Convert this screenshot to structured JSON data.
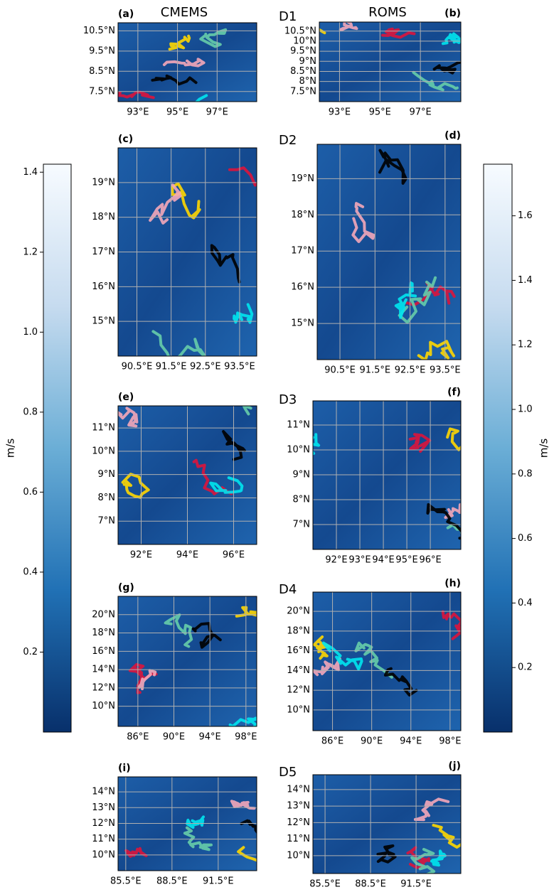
{
  "headers": {
    "left": "CMEMS",
    "right": "ROMS"
  },
  "row_labels": [
    "D1",
    "D2",
    "D3",
    "D4",
    "D5"
  ],
  "chart_data": [
    {
      "type": "map",
      "title": "(a)",
      "grid": true,
      "xlim": [
        92,
        99
      ],
      "ylim": [
        7,
        10.9
      ],
      "xticks": [
        {
          "value": 93,
          "label": "93°E"
        },
        {
          "value": 95,
          "label": "95°E"
        },
        {
          "value": 97,
          "label": "97°E"
        }
      ],
      "yticks": [
        {
          "value": 7.5,
          "label": "7.5°N"
        },
        {
          "value": 8.5,
          "label": "8.5°N"
        },
        {
          "value": 9.5,
          "label": "9.5°N"
        },
        {
          "value": 10.5,
          "label": "10.5°N"
        }
      ]
    },
    {
      "type": "map",
      "title": "(b)",
      "grid": true,
      "xlim": [
        92,
        99
      ],
      "ylim": [
        7,
        10.95
      ],
      "xticks": [
        {
          "value": 93,
          "label": "93°E"
        },
        {
          "value": 95,
          "label": "95°E"
        },
        {
          "value": 97,
          "label": "97°E"
        }
      ],
      "yticks": [
        {
          "value": 7.5,
          "label": "7.5°N"
        },
        {
          "value": 8,
          "label": "8°N"
        },
        {
          "value": 8.5,
          "label": "8.5°N"
        },
        {
          "value": 9,
          "label": "9°N"
        },
        {
          "value": 9.5,
          "label": "9.5°N"
        },
        {
          "value": 10,
          "label": "10°N"
        },
        {
          "value": 10.5,
          "label": "10.5°N"
        }
      ]
    },
    {
      "type": "map",
      "title": "(c)",
      "grid": true,
      "xlim": [
        89.95,
        94
      ],
      "ylim": [
        14,
        20
      ],
      "xticks": [
        {
          "value": 90.5,
          "label": "90.5°E"
        },
        {
          "value": 91.5,
          "label": "91.5°E"
        },
        {
          "value": 92.5,
          "label": "92.5°E"
        },
        {
          "value": 93.5,
          "label": "93.5°E"
        }
      ],
      "yticks": [
        {
          "value": 15,
          "label": "15°N"
        },
        {
          "value": 16,
          "label": "16°N"
        },
        {
          "value": 17,
          "label": "17°N"
        },
        {
          "value": 18,
          "label": "18°N"
        },
        {
          "value": 19,
          "label": "19°N"
        }
      ]
    },
    {
      "type": "map",
      "title": "(d)",
      "grid": true,
      "xlim": [
        89.85,
        93.95
      ],
      "ylim": [
        14,
        19.95
      ],
      "xticks": [
        {
          "value": 90.5,
          "label": "90.5°E"
        },
        {
          "value": 91.5,
          "label": "91.5°E"
        },
        {
          "value": 92.5,
          "label": "92.5°E"
        },
        {
          "value": 93.5,
          "label": "93.5°E"
        }
      ],
      "yticks": [
        {
          "value": 15,
          "label": "15°N"
        },
        {
          "value": 16,
          "label": "16°N"
        },
        {
          "value": 17,
          "label": "17°N"
        },
        {
          "value": 18,
          "label": "18°N"
        },
        {
          "value": 19,
          "label": "19°N"
        }
      ]
    },
    {
      "type": "map",
      "title": "(e)",
      "grid": true,
      "xlim": [
        91,
        97
      ],
      "ylim": [
        6,
        11.95
      ],
      "xticks": [
        {
          "value": 92,
          "label": "92°E"
        },
        {
          "value": 94,
          "label": "94°E"
        },
        {
          "value": 96,
          "label": "96°E"
        }
      ],
      "yticks": [
        {
          "value": 7,
          "label": "7°N"
        },
        {
          "value": 8,
          "label": "8°N"
        },
        {
          "value": 9,
          "label": "9°N"
        },
        {
          "value": 10,
          "label": "10°N"
        },
        {
          "value": 11,
          "label": "11°N"
        }
      ]
    },
    {
      "type": "map",
      "title": "(f)",
      "grid": true,
      "xlim": [
        91,
        97.3
      ],
      "ylim": [
        6,
        11.97
      ],
      "xticks": [
        {
          "value": 92,
          "label": "92°E"
        },
        {
          "value": 93,
          "label": "93°E"
        },
        {
          "value": 94,
          "label": "94°E"
        },
        {
          "value": 95,
          "label": "95°E"
        },
        {
          "value": 96,
          "label": "96°E"
        }
      ],
      "yticks": [
        {
          "value": 7,
          "label": "7°N"
        },
        {
          "value": 8,
          "label": "8°N"
        },
        {
          "value": 9,
          "label": "9°N"
        },
        {
          "value": 10,
          "label": "10°N"
        },
        {
          "value": 11,
          "label": "11°N"
        }
      ]
    },
    {
      "type": "map",
      "title": "(g)",
      "grid": true,
      "xlim": [
        83.8,
        99.2
      ],
      "ylim": [
        7.8,
        22
      ],
      "xticks": [
        {
          "value": 86,
          "label": "86°E"
        },
        {
          "value": 90,
          "label": "90°E"
        },
        {
          "value": 94,
          "label": "94°E"
        },
        {
          "value": 98,
          "label": "98°E"
        }
      ],
      "yticks": [
        {
          "value": 10,
          "label": "10°N"
        },
        {
          "value": 12,
          "label": "12°N"
        },
        {
          "value": 14,
          "label": "14°N"
        },
        {
          "value": 16,
          "label": "16°N"
        },
        {
          "value": 18,
          "label": "18°N"
        },
        {
          "value": 20,
          "label": "20°N"
        }
      ]
    },
    {
      "type": "map",
      "title": "(h)",
      "grid": true,
      "xlim": [
        84,
        99.1
      ],
      "ylim": [
        7.9,
        21.95
      ],
      "xticks": [
        {
          "value": 86,
          "label": "86°E"
        },
        {
          "value": 90,
          "label": "90°E"
        },
        {
          "value": 94,
          "label": "94°E"
        },
        {
          "value": 98,
          "label": "98°E"
        }
      ],
      "yticks": [
        {
          "value": 10,
          "label": "10°N"
        },
        {
          "value": 12,
          "label": "12°N"
        },
        {
          "value": 14,
          "label": "14°N"
        },
        {
          "value": 16,
          "label": "16°N"
        },
        {
          "value": 18,
          "label": "18°N"
        },
        {
          "value": 20,
          "label": "20°N"
        }
      ]
    },
    {
      "type": "map",
      "title": "(i)",
      "grid": true,
      "xlim": [
        85,
        94
      ],
      "ylim": [
        9,
        14.95
      ],
      "xticks": [
        {
          "value": 85.5,
          "label": "85.5°E"
        },
        {
          "value": 88.5,
          "label": "88.5°E"
        },
        {
          "value": 91.5,
          "label": "91.5°E"
        }
      ],
      "yticks": [
        {
          "value": 10,
          "label": "10°N"
        },
        {
          "value": 11,
          "label": "11°N"
        },
        {
          "value": 12,
          "label": "12°N"
        },
        {
          "value": 13,
          "label": "13°N"
        },
        {
          "value": 14,
          "label": "14°N"
        }
      ]
    },
    {
      "type": "map",
      "title": "(j)",
      "grid": true,
      "xlim": [
        84.7,
        94.45
      ],
      "ylim": [
        8.92,
        14.9
      ],
      "xticks": [
        {
          "value": 85.5,
          "label": "85.5°E"
        },
        {
          "value": 88.5,
          "label": "88.5°E"
        },
        {
          "value": 91.5,
          "label": "91.5°E"
        }
      ],
      "yticks": [
        {
          "value": 10,
          "label": "10°N"
        },
        {
          "value": 11,
          "label": "11°N"
        },
        {
          "value": 12,
          "label": "12°N"
        },
        {
          "value": 13,
          "label": "13°N"
        },
        {
          "value": 14,
          "label": "14°N"
        }
      ]
    },
    {
      "type": "colorbar",
      "ylabel": "m/s",
      "ylim": [
        0,
        1.42
      ],
      "tick_side": "left",
      "yticks": [
        0.2,
        0.4,
        0.6,
        0.8,
        {
          "value": 1,
          "label": "1.0"
        },
        1.2,
        1.4
      ]
    },
    {
      "type": "colorbar",
      "ylabel": "m/s",
      "ylim": [
        0,
        1.76
      ],
      "tick_side": "right",
      "yticks": [
        0.2,
        0.4,
        0.6,
        0.8,
        {
          "value": 1,
          "label": "1.0"
        },
        1.2,
        1.4,
        1.6
      ]
    }
  ]
}
